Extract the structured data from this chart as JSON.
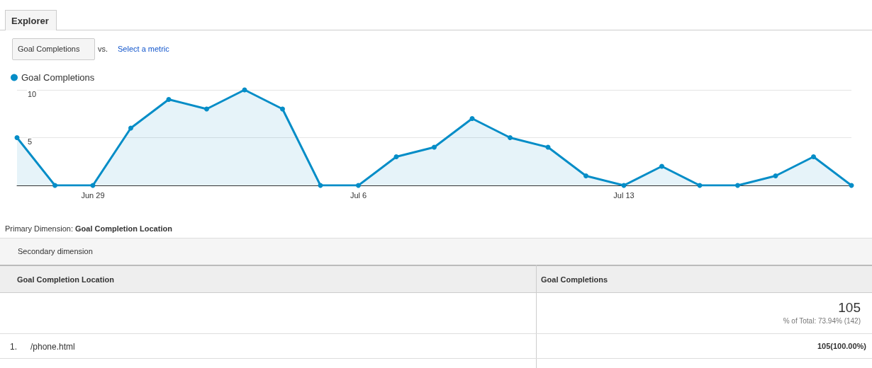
{
  "chart_data": {
    "type": "area",
    "categories": [
      null,
      null,
      "Jun 29",
      null,
      null,
      null,
      null,
      null,
      null,
      "Jul 6",
      null,
      null,
      null,
      null,
      null,
      null,
      "Jul 13",
      null,
      null,
      null,
      null,
      null,
      null
    ],
    "series": [
      {
        "name": "Goal Completions",
        "color": "#058dc7",
        "values": [
          5,
          0,
          0,
          6,
          9,
          8,
          10,
          8,
          0,
          0,
          3,
          4,
          7,
          5,
          4,
          1,
          0,
          2,
          0,
          0,
          1,
          3,
          0
        ]
      }
    ],
    "ylim": [
      0,
      10
    ],
    "yticks": [
      {
        "value": 0,
        "label": null
      },
      5,
      10
    ],
    "grid": "y",
    "legend": "top left",
    "marker": "circle",
    "line_style": "solid",
    "annotations": [
      "Explorer",
      "Goal Completions",
      "vs.",
      "Select a metric",
      "Primary Dimension:",
      "Goal Completion Location",
      "Secondary dimension",
      "Goal Completion Location",
      "Goal Completions",
      "105",
      "% of Total: 73.94% (142)",
      "1.",
      "/phone.html",
      "105(100.00%)"
    ]
  }
}
